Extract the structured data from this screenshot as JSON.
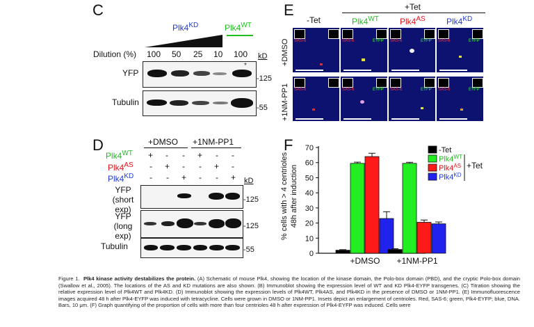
{
  "panel_c": {
    "letter": "C",
    "kd_header": "Plk4",
    "kd_sup": "KD",
    "wt_header": "Plk4",
    "wt_sup": "WT",
    "dilution_label": "Dilution (%)",
    "dilutions": [
      "100",
      "50",
      "25",
      "10",
      "100"
    ],
    "kd_unit": "kD",
    "rows": [
      "YFP",
      "Tubulin"
    ],
    "markers": [
      "-125",
      "-55"
    ],
    "asterisk": "*"
  },
  "panel_d": {
    "letter": "D",
    "groups": [
      "+DMSO",
      "+1NM-PP1"
    ],
    "row_labels": [
      {
        "name": "Plk4",
        "sup": "WT",
        "color": "#1fbf1f"
      },
      {
        "name": "Plk4",
        "sup": "AS",
        "color": "#e3131b"
      },
      {
        "name": "Plk4",
        "sup": "KD",
        "color": "#1f3bd6"
      }
    ],
    "signs": [
      [
        "+",
        "-",
        "-",
        "+",
        "-",
        "-"
      ],
      [
        "-",
        "+",
        "-",
        "-",
        "+",
        "-"
      ],
      [
        "-",
        "-",
        "+",
        "-",
        "-",
        "+"
      ]
    ],
    "kd_unit": "kD",
    "blot_labels": [
      "YFP",
      "(short exp)",
      "YFP",
      "(long exp)",
      "Tubulin"
    ],
    "markers": [
      "-125",
      "-125",
      "-55"
    ]
  },
  "panel_e": {
    "letter": "E",
    "tet_plus": "+Tet",
    "columns": [
      {
        "label": "-Tet",
        "color": "#111111",
        "sup": ""
      },
      {
        "label": "Plk4",
        "color": "#1fbf1f",
        "sup": "WT"
      },
      {
        "label": "Plk4",
        "color": "#e3131b",
        "sup": "AS"
      },
      {
        "label": "Plk4",
        "color": "#1f3bd6",
        "sup": "KD"
      }
    ],
    "row_labels": [
      "+DMSO",
      "+1NM-PP1"
    ],
    "inset_labels": [
      "SAS-6",
      "EYFP"
    ]
  },
  "panel_f": {
    "letter": "F",
    "legend_group": "+Tet"
  },
  "chart_data": {
    "type": "bar",
    "ylabel": "% cells with > 4 centrioles 48h after induction",
    "xlabel": "",
    "ylim": [
      0,
      70
    ],
    "yticks": [
      0,
      10,
      20,
      30,
      40,
      50,
      60,
      70
    ],
    "categories": [
      "+DMSO",
      "+1NM-PP1"
    ],
    "series": [
      {
        "name": "-Tet",
        "sup": "",
        "color": "#000000",
        "values": [
          2,
          2.5
        ],
        "errors": [
          0.4,
          0.5
        ]
      },
      {
        "name": "Plk4",
        "sup": "WT",
        "color": "#22ee22",
        "values": [
          59.5,
          59.5
        ],
        "errors": [
          0.8,
          0.7
        ]
      },
      {
        "name": "Plk4",
        "sup": "AS",
        "color": "#ff1a1a",
        "values": [
          64,
          20.5
        ],
        "errors": [
          2.2,
          1.5
        ]
      },
      {
        "name": "Plk4",
        "sup": "KD",
        "color": "#2222ee",
        "values": [
          23,
          19.5
        ],
        "errors": [
          4.5,
          1.2
        ]
      }
    ],
    "legend_position": "top-right",
    "grid": false
  },
  "caption": {
    "figure": "Figure 1.",
    "title": "Plk4 kinase activity destabilizes the protein.",
    "body": "(A) Schematic of mouse Plk4, showing the location of the kinase domain, the Polo-box domain (PBD), and the cryptic Polo-box domain (Swallow et al., 2005). The locations of the AS and KD mutations are also shown. (B) Immunoblot showing the expression level of WT and KD Plk4-EYFP transgenes. (C) Titration showing the relative expression level of Plk4WT and Plk4KD. (D) Immunoblot showing the expression levels of Plk4WT, Plk4AS, and Plk4KD in the presence of DMSO or 1NM-PP1. (E) Immunofluorescence images acquired 48 h after Plk4-EYFP was induced with tetracycline. Cells were grown in DMSO or 1NM-PP1. Insets depict an enlargement of centrioles. Red, SAS-6; green, Plk4-EYFP; blue, DNA. Bars, 10 μm. (F) Graph quantifying of the proportion of cells with more than four centrioles 48 h after expression of Plk4-EYFP was induced. Cells were"
  }
}
